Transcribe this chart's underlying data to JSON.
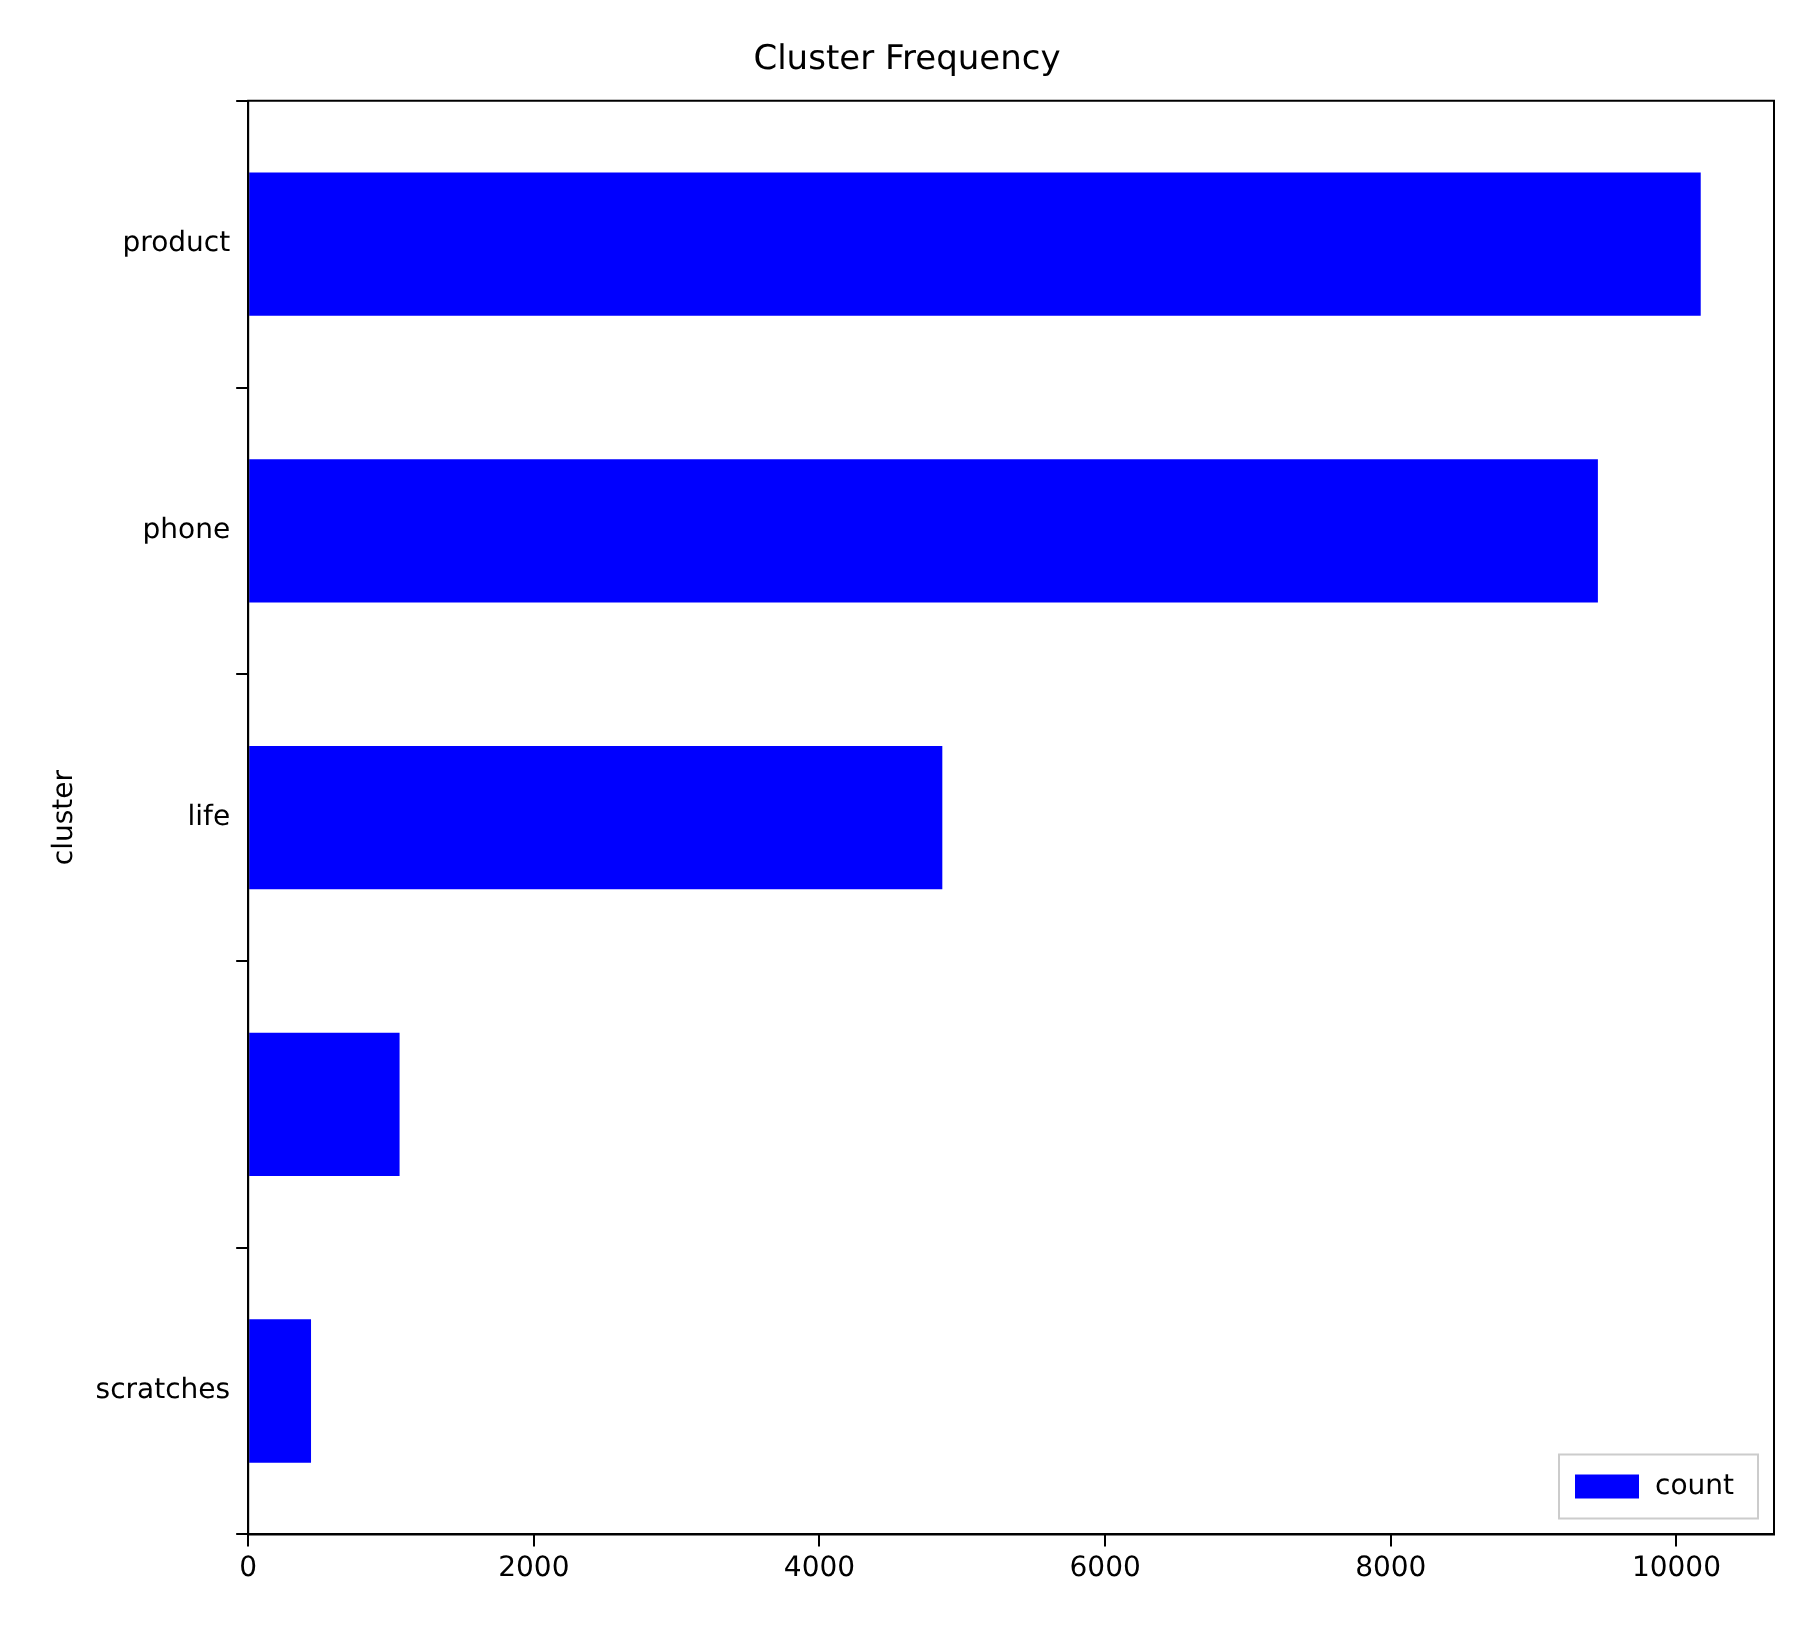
{
  "chart_data": {
    "type": "bar",
    "orientation": "horizontal",
    "title": "Cluster Frequency",
    "ylabel": "cluster",
    "categories": [
      "product",
      "phone",
      "life",
      null,
      "scratches"
    ],
    "series": [
      {
        "name": "count",
        "color": "#0000ff",
        "values": [
          10170,
          9450,
          4860,
          1060,
          440
        ]
      }
    ],
    "xlim": [
      0,
      10683
    ],
    "xticks": [
      0,
      2000,
      4000,
      6000,
      8000,
      10000
    ],
    "grid": false,
    "legend": "bottom right"
  }
}
